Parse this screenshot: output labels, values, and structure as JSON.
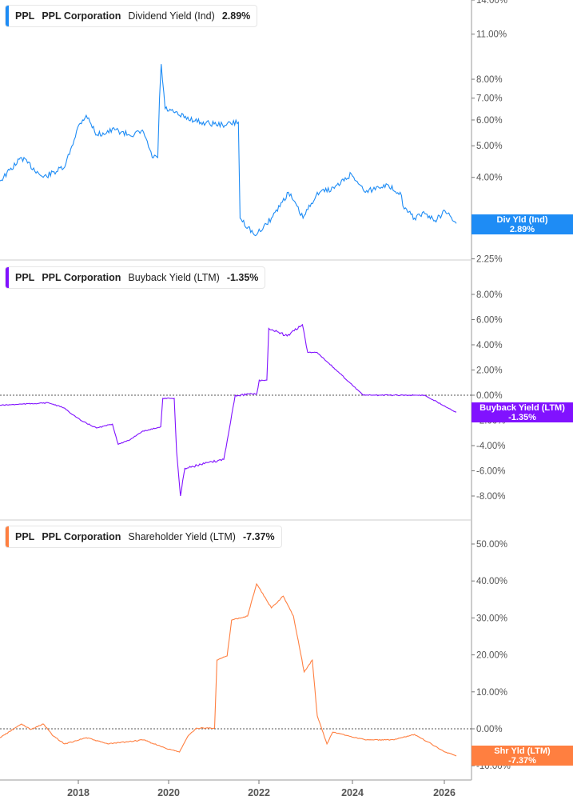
{
  "colors": {
    "dividend": "#1e8cf5",
    "buyback": "#8112ff",
    "shareholder": "#ff7f40"
  },
  "panels": [
    {
      "ticker": "PPL",
      "company": "PPL Corporation",
      "metric": "Dividend Yield (Ind)",
      "value": "2.89%",
      "box_label": "Div Yld (Ind)",
      "box_value": "2.89%"
    },
    {
      "ticker": "PPL",
      "company": "PPL Corporation",
      "metric": "Buyback Yield (LTM)",
      "value": "-1.35%",
      "box_label": "Buyback Yield (LTM)",
      "box_value": "-1.35%"
    },
    {
      "ticker": "PPL",
      "company": "PPL Corporation",
      "metric": "Shareholder Yield (LTM)",
      "value": "-7.37%",
      "box_label": "Shr Yld (LTM)",
      "box_value": "-7.37%"
    }
  ],
  "chart_data": [
    {
      "type": "line",
      "scale": "log",
      "yticks": [
        "14.00%",
        "11.00%",
        "8.00%",
        "7.00%",
        "6.00%",
        "5.00%",
        "4.00%",
        "3.00%",
        "2.25%"
      ],
      "ytick_values": [
        14,
        11,
        8,
        7,
        6,
        5,
        4,
        3,
        2.25
      ],
      "series": [
        {
          "name": "Dividend Yield (Ind)",
          "points": [
            [
              "2016-04-10",
              3.9
            ],
            [
              "2016-10-20",
              4.6
            ],
            [
              "2017-05-01",
              4.0
            ],
            [
              "2017-11-10",
              4.3
            ],
            [
              "2018-03-15",
              5.8
            ],
            [
              "2018-05-20",
              6.2
            ],
            [
              "2018-08-25",
              5.4
            ],
            [
              "2019-02-01",
              5.6
            ],
            [
              "2019-06-10",
              5.4
            ],
            [
              "2019-10-15",
              5.5
            ],
            [
              "2020-01-01",
              4.6
            ],
            [
              "2020-02-20",
              4.6
            ],
            [
              "2020-03-05",
              7.0
            ],
            [
              "2020-03-20",
              8.9
            ],
            [
              "2020-04-25",
              6.5
            ],
            [
              "2020-09-01",
              6.2
            ],
            [
              "2021-03-10",
              5.9
            ],
            [
              "2021-09-20",
              5.8
            ],
            [
              "2022-02-10",
              5.9
            ],
            [
              "2022-02-25",
              3.0
            ],
            [
              "2022-07-10",
              2.65
            ],
            [
              "2022-12-01",
              3.0
            ],
            [
              "2023-05-01",
              3.6
            ],
            [
              "2023-09-10",
              3.0
            ],
            [
              "2024-01-15",
              3.6
            ],
            [
              "2024-06-15",
              3.7
            ],
            [
              "2024-11-15",
              4.1
            ],
            [
              "2025-03-20",
              3.6
            ],
            [
              "2025-09-01",
              3.8
            ],
            [
              "2026-01-25",
              3.6
            ],
            [
              "2026-03-01",
              3.2
            ],
            [
              "2026-06-01",
              3.0
            ],
            [
              "2026-09-01",
              3.1
            ],
            [
              "2026-12-01",
              2.95
            ],
            [
              "2027-03-01",
              3.15
            ],
            [
              "2027-06-10",
              2.89
            ]
          ]
        }
      ]
    },
    {
      "type": "line",
      "scale": "linear",
      "yticks": [
        "8.00%",
        "6.00%",
        "4.00%",
        "2.00%",
        "0.00%",
        "-2.00%",
        "-4.00%",
        "-6.00%",
        "-8.00%"
      ],
      "ytick_values": [
        8,
        6,
        4,
        2,
        0,
        -2,
        -4,
        -6,
        -8
      ],
      "series": [
        {
          "name": "Buyback Yield (LTM)",
          "points": [
            [
              "2016-04-10",
              -0.8
            ],
            [
              "2017-05-01",
              -0.6
            ],
            [
              "2017-09-01",
              -1.0
            ],
            [
              "2018-01-15",
              -2.0
            ],
            [
              "2018-05-20",
              -2.6
            ],
            [
              "2018-09-25",
              -2.3
            ],
            [
              "2018-11-10",
              -3.9
            ],
            [
              "2019-02-01",
              -3.6
            ],
            [
              "2019-05-15",
              -2.9
            ],
            [
              "2019-10-15",
              -2.5
            ],
            [
              "2019-11-01",
              -0.25
            ],
            [
              "2020-02-01",
              -0.25
            ],
            [
              "2020-02-20",
              -4.5
            ],
            [
              "2020-03-20",
              -8.0
            ],
            [
              "2020-04-25",
              -5.8
            ],
            [
              "2020-09-01",
              -5.5
            ],
            [
              "2021-03-01",
              -5.1
            ],
            [
              "2021-06-01",
              0.0
            ],
            [
              "2021-11-20",
              0.1
            ],
            [
              "2021-12-10",
              1.2
            ],
            [
              "2022-02-10",
              1.2
            ],
            [
              "2022-02-25",
              5.3
            ],
            [
              "2022-07-20",
              4.7
            ],
            [
              "2022-11-20",
              5.6
            ],
            [
              "2023-01-01",
              3.4
            ],
            [
              "2023-03-15",
              3.4
            ],
            [
              "2024-03-20",
              0.0
            ],
            [
              "2025-07-20",
              0.0
            ],
            [
              "2026-04-01",
              -1.35
            ]
          ]
        }
      ]
    },
    {
      "type": "line",
      "scale": "linear",
      "yticks": [
        "50.00%",
        "40.00%",
        "30.00%",
        "20.00%",
        "10.00%",
        "0.00%",
        "-10.00%"
      ],
      "ytick_values": [
        50,
        40,
        30,
        20,
        10,
        0,
        -10
      ],
      "xticks": [
        "2018",
        "2020",
        "2022",
        "2024",
        "2026"
      ],
      "series": [
        {
          "name": "Shareholder Yield (LTM)",
          "points": [
            [
              "2016-04-10",
              -2.4
            ],
            [
              "2016-10-20",
              1.3
            ],
            [
              "2017-01-10",
              -0.2
            ],
            [
              "2017-05-01",
              1.3
            ],
            [
              "2017-08-01",
              -2.0
            ],
            [
              "2017-11-10",
              -4.1
            ],
            [
              "2018-05-20",
              -2.4
            ],
            [
              "2018-12-01",
              -4.1
            ],
            [
              "2019-10-15",
              -3.0
            ],
            [
              "2020-04-25",
              -5.2
            ],
            [
              "2020-09-01",
              -6.3
            ],
            [
              "2020-11-15",
              -2.0
            ],
            [
              "2021-02-01",
              0.2
            ],
            [
              "2021-07-10",
              0.2
            ],
            [
              "2021-08-01",
              18.6
            ],
            [
              "2021-11-01",
              19.7
            ],
            [
              "2021-12-10",
              29.4
            ],
            [
              "2022-05-01",
              30.5
            ],
            [
              "2022-07-20",
              39.2
            ],
            [
              "2022-12-01",
              32.7
            ],
            [
              "2023-03-15",
              35.9
            ],
            [
              "2023-06-15",
              30.5
            ],
            [
              "2023-09-20",
              15.4
            ],
            [
              "2023-12-01",
              18.6
            ],
            [
              "2024-01-15",
              3.5
            ],
            [
              "2024-04-10",
              -4.1
            ],
            [
              "2024-06-01",
              -0.9
            ],
            [
              "2025-03-20",
              -3.0
            ],
            [
              "2025-12-01",
              -3.0
            ],
            [
              "2026-06-01",
              -1.5
            ],
            [
              "2026-11-01",
              -4.1
            ],
            [
              "2027-03-01",
              -6.3
            ],
            [
              "2027-06-10",
              -7.37
            ]
          ]
        }
      ]
    }
  ]
}
